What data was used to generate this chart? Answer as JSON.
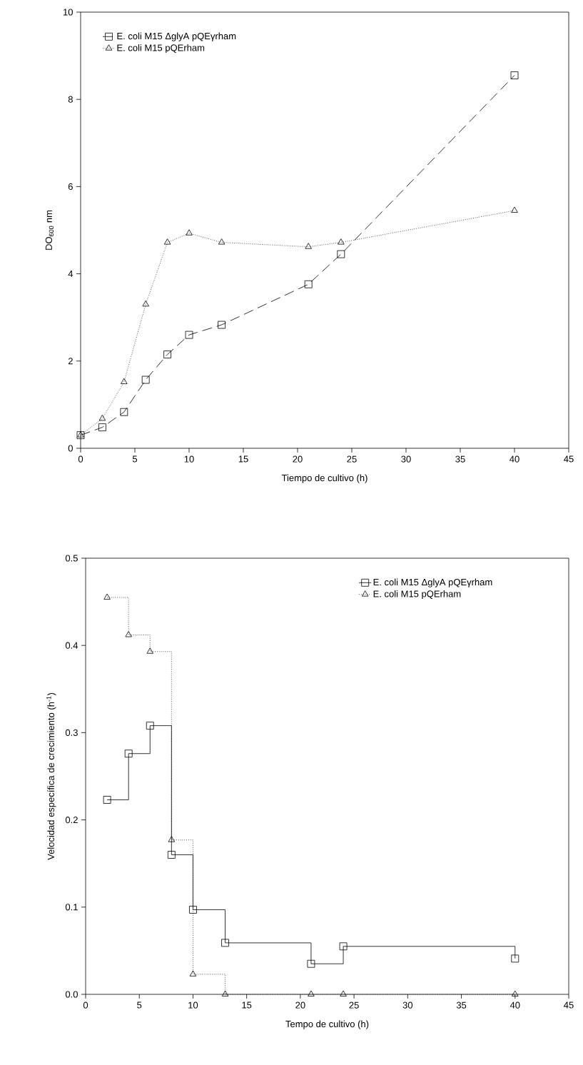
{
  "chart_data": [
    {
      "type": "line",
      "xlabel": "Tiempo de cultivo (h)",
      "ylabel": "DO$_{600}$ nm",
      "xlim": [
        0,
        45
      ],
      "ylim": [
        0,
        10
      ],
      "xticks": [
        0,
        5,
        10,
        15,
        20,
        25,
        30,
        35,
        40,
        45
      ],
      "yticks": [
        0,
        2,
        4,
        6,
        8,
        10
      ],
      "grid": false,
      "legend": "top left",
      "series": [
        {
          "name": "E. coli M15 ΔglyA  pQEγrham",
          "color": "#000000",
          "marker": "square",
          "line_style": "dashed",
          "x": [
            0,
            2,
            4,
            6,
            8,
            10,
            13,
            21,
            24,
            40
          ],
          "values": [
            0.3,
            0.48,
            0.83,
            1.57,
            2.15,
            2.6,
            2.83,
            3.76,
            4.45,
            8.55
          ]
        },
        {
          "name": "E. coli M15 pQErham",
          "color": "#000000",
          "marker": "triangle",
          "line_style": "dotted",
          "x": [
            0,
            2,
            4,
            6,
            8,
            10,
            13,
            21,
            24,
            40
          ],
          "values": [
            0.3,
            0.68,
            1.52,
            3.3,
            4.72,
            4.93,
            4.72,
            4.62,
            4.72,
            5.45
          ]
        }
      ]
    },
    {
      "type": "step",
      "xlabel": "Tempo de cultivo (h)",
      "ylabel": "Velocidad específica de crecimiento (h$^{-1}$)",
      "xlim": [
        0,
        45
      ],
      "ylim": [
        0,
        0.5
      ],
      "xticks": [
        0,
        5,
        10,
        15,
        20,
        25,
        30,
        35,
        40,
        45
      ],
      "yticks": [
        {
          "value": 0,
          "label": "0.0"
        },
        {
          "value": 0.1,
          "label": "0.1"
        },
        {
          "value": 0.2,
          "label": "0.2"
        },
        {
          "value": 0.3,
          "label": "0.3"
        },
        {
          "value": 0.4,
          "label": "0.4"
        },
        {
          "value": 0.5,
          "label": "0.5"
        }
      ],
      "grid": false,
      "legend": "top right",
      "series": [
        {
          "name": "E. coli M15 ΔglyA  pQEγrham",
          "color": "#000000",
          "marker": "square",
          "line_style": "solid",
          "x": [
            2,
            4,
            6,
            8,
            10,
            13,
            21,
            24,
            40
          ],
          "values": [
            0.223,
            0.276,
            0.308,
            0.16,
            0.097,
            0.059,
            0.035,
            0.055,
            0.041
          ]
        },
        {
          "name": "E. coli M15 pQErham",
          "color": "#000000",
          "marker": "triangle",
          "line_style": "dotted",
          "x": [
            2,
            4,
            6,
            8,
            10,
            13,
            21,
            24,
            40
          ],
          "values": [
            0.455,
            0.412,
            0.393,
            0.177,
            0.023,
            0,
            0,
            0,
            0
          ]
        }
      ]
    }
  ]
}
